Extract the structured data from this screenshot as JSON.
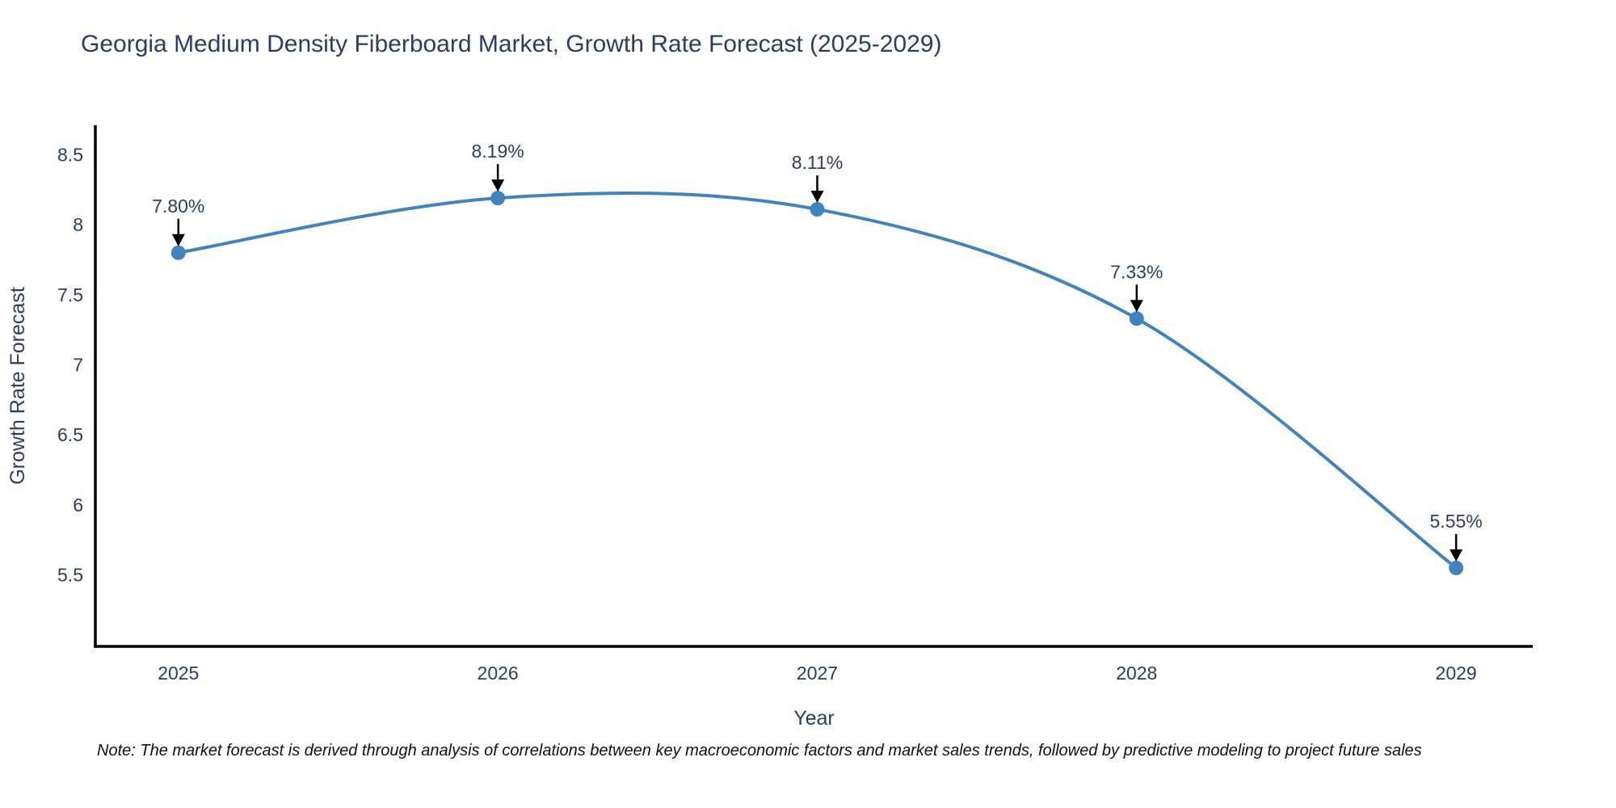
{
  "chart_data": {
    "type": "line",
    "title": "Georgia Medium Density Fiberboard Market, Growth Rate Forecast (2025-2029)",
    "x": [
      2025,
      2026,
      2027,
      2028,
      2029
    ],
    "series": [
      {
        "name": "Growth Rate Forecast",
        "values": [
          7.8,
          8.19,
          8.11,
          7.33,
          5.55
        ]
      }
    ],
    "point_labels": [
      "7.80%",
      "8.19%",
      "8.11%",
      "7.33%",
      "5.55%"
    ],
    "xlabel": "Year",
    "ylabel": "Growth Rate Forecast",
    "x_tick_labels": [
      "2025",
      "2026",
      "2027",
      "2028",
      "2029"
    ],
    "y_ticks": [
      8.5,
      8.0,
      7.5,
      7.0,
      6.5,
      6.0,
      5.5
    ],
    "y_tick_labels": [
      "8.5",
      "8",
      "7.5",
      "7",
      "6.5",
      "6",
      "5.5"
    ],
    "xlim": [
      2024.74,
      2029.24
    ],
    "ylim": [
      4.99,
      8.71
    ],
    "line_shape": "spline",
    "grid": false,
    "legend_position": "none",
    "annotations_have_arrows": true,
    "colors": {
      "line": "#4183bd",
      "marker": "#4183bd",
      "axis": "#000000",
      "tick_text": "#2a3f5f",
      "annotation_text": "#2a3f5f",
      "arrow": "#000000",
      "title": "#2a3f5f"
    }
  },
  "note": {
    "text": "Note: The market forecast is derived through analysis of correlations between key macroeconomic factors and market sales trends, followed by predictive modeling to project future sales"
  }
}
